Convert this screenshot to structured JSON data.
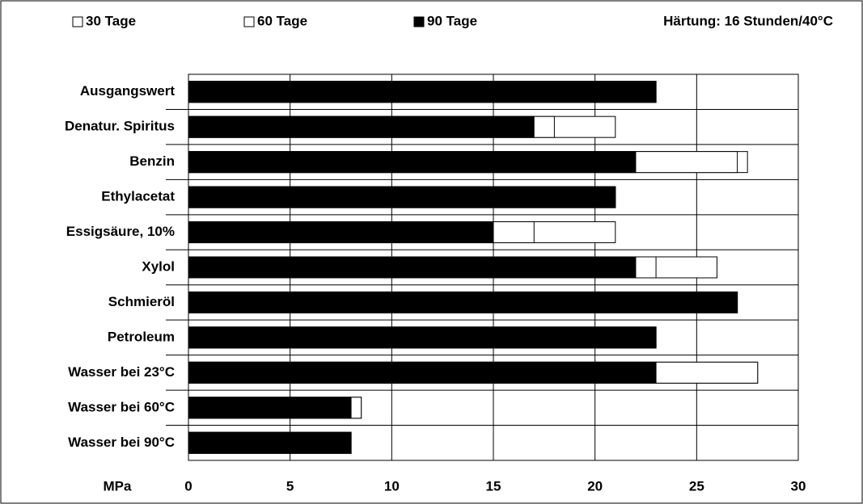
{
  "chart_data": {
    "type": "bar",
    "orientation": "horizontal",
    "overlap": true,
    "annotation": "Härtung: 16 Stunden/40°C",
    "x_label": "MPa",
    "categories": [
      "Ausgangswert",
      "Denatur. Spiritus",
      "Benzin",
      "Ethylacetat",
      "Essigsäure, 10%",
      "Xylol",
      "Schmieröl",
      "Petroleum",
      "Wasser bei 23°C",
      "Wasser bei 60°C",
      "Wasser bei 90°C"
    ],
    "series": [
      {
        "name": "30 Tage",
        "color": "#ffffff",
        "values": [
          23,
          21,
          27.5,
          21,
          21,
          26,
          27,
          23,
          28,
          8.5,
          8
        ]
      },
      {
        "name": "60 Tage",
        "color": "#ffffff",
        "values": [
          23,
          18,
          27,
          21,
          17,
          23,
          27,
          23,
          28,
          8.5,
          8
        ]
      },
      {
        "name": "90 Tage",
        "color": "#000000",
        "values": [
          23,
          17,
          22,
          21,
          15,
          22,
          27,
          23,
          23,
          8,
          8
        ]
      }
    ],
    "xlim": [
      0,
      30
    ],
    "xticks": [
      0,
      5,
      10,
      15,
      20,
      25,
      30
    ],
    "grid": true
  }
}
